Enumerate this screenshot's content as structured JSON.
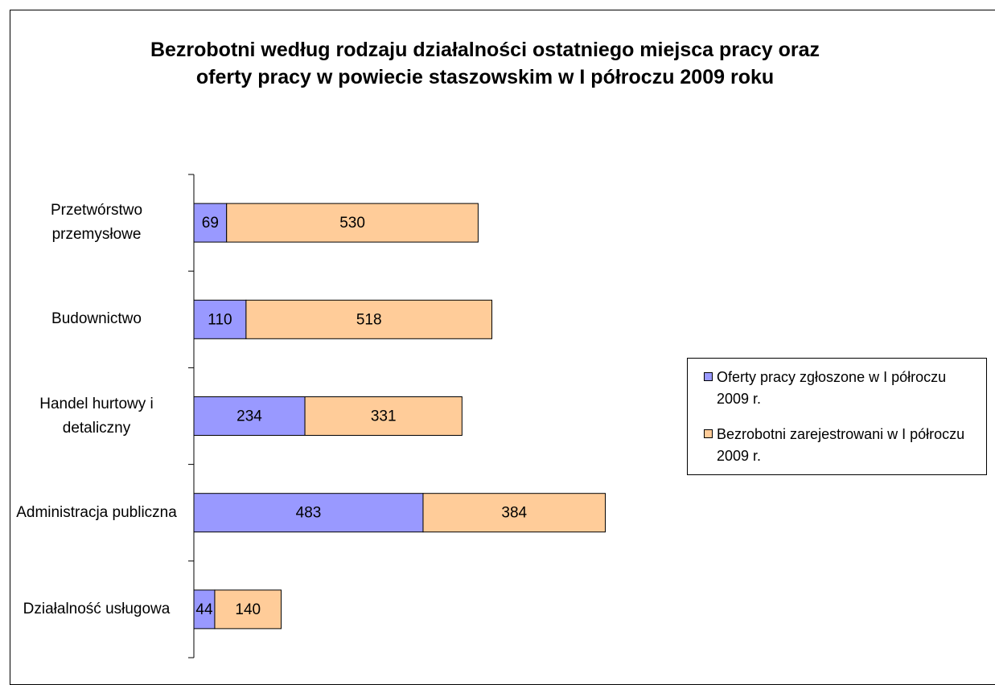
{
  "chart_data": {
    "type": "stacked_barh",
    "title": "Bezrobotni według rodzaju działalności ostatniego miejsca pracy oraz oferty pracy w powiecie staszowskim w I półroczu 2009 roku",
    "categories": [
      "Przetwórstwo przemysłowe",
      "Budownictwo",
      "Handel hurtowy i detaliczny",
      "Administracja publiczna",
      "Działalność usługowa"
    ],
    "series": [
      {
        "name": "Oferty pracy zgłoszone w I półroczu 2009 r.",
        "color": "#9999ff",
        "values": [
          69,
          110,
          234,
          483,
          44
        ]
      },
      {
        "name": "Bezrobotni zarejestrowani w I półroczu 2009 r.",
        "color": "#ffcc99",
        "values": [
          530,
          518,
          331,
          384,
          140
        ]
      }
    ],
    "legend": "right"
  }
}
